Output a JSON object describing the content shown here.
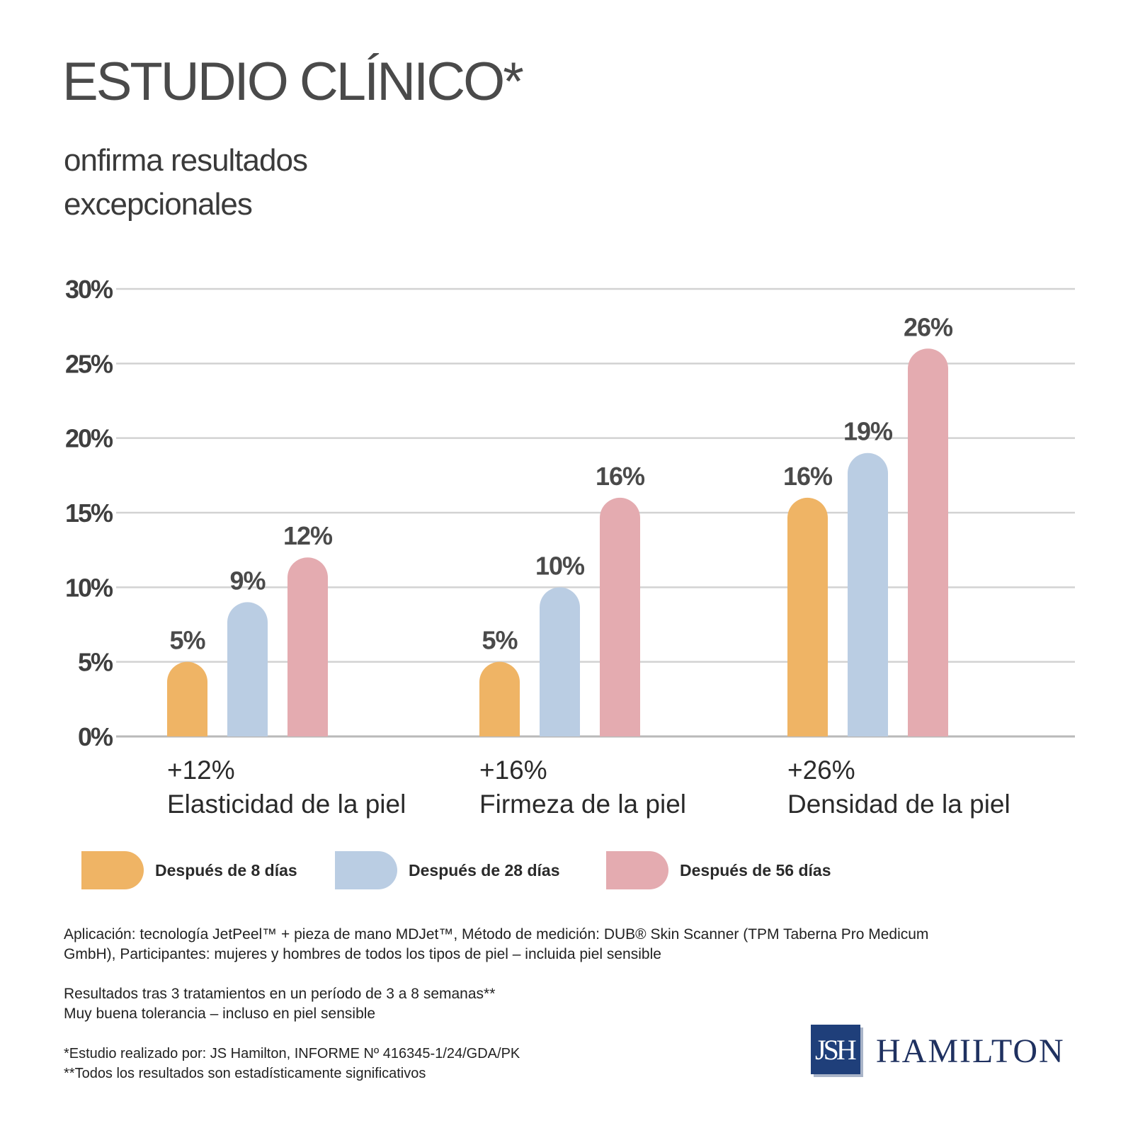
{
  "header": {
    "title": "ESTUDIO CLÍNICO*",
    "subtitle_line1": "onfirma resultados",
    "subtitle_line2": "excepcionales"
  },
  "chart_data": {
    "type": "bar",
    "categories": [
      "Elasticidad de la piel",
      "Firmeza de la piel",
      "Densidad de la piel"
    ],
    "category_totals": [
      "+12%",
      "+16%",
      "+26%"
    ],
    "series": [
      {
        "name": "Después de 8 días",
        "values": [
          5,
          5,
          16
        ],
        "labels": [
          "5%",
          "5%",
          "16%"
        ],
        "color": "#efb465"
      },
      {
        "name": "Después de 28 días",
        "values": [
          9,
          10,
          19
        ],
        "labels": [
          "9%",
          "10%",
          "19%"
        ],
        "color": "#bacde3"
      },
      {
        "name": "Después de 56 días",
        "values": [
          12,
          16,
          26
        ],
        "labels": [
          "12%",
          "16%",
          "26%"
        ],
        "color": "#e4abb0"
      }
    ],
    "y_ticks": [
      "0%",
      "5%",
      "10%",
      "15%",
      "20%",
      "25%",
      "30%"
    ],
    "ylim": [
      0,
      30
    ],
    "grid": true,
    "legend_position": "bottom"
  },
  "notes": {
    "application_line1": "Aplicación: tecnología JetPeel™ + pieza de mano MDJet™, Método de medición: DUB® Skin Scanner (TPM Taberna Pro Medicum",
    "application_line2": "GmbH), Participantes: mujeres y hombres de todos los tipos de piel – incluida piel sensible",
    "results_line1": "Resultados tras 3 tratamientos en un período de 3 a 8 semanas**",
    "results_line2": "Muy buena tolerancia – incluso en piel sensible",
    "footnote1": "*Estudio realizado por: JS Hamilton, INFORME Nº 416345-1/24/GDA/PK",
    "footnote2": "**Todos los resultados son estadísticamente significativos"
  },
  "logo": {
    "mark": "JSH",
    "name": "HAMILTON"
  }
}
